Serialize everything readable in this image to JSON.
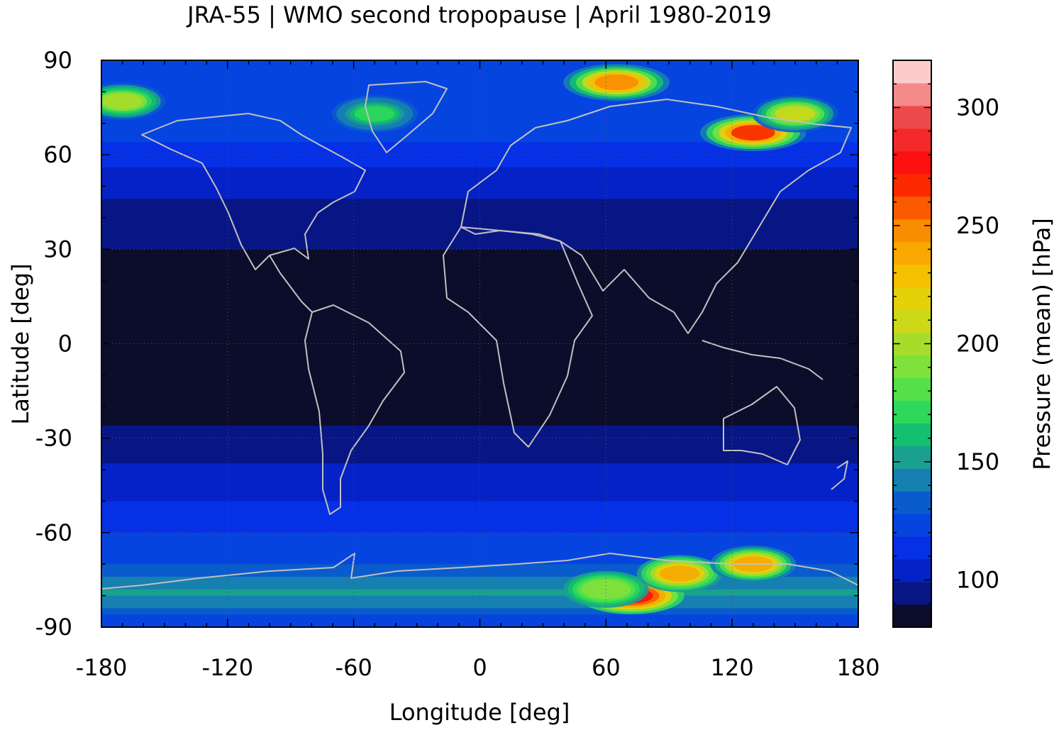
{
  "chart_data": {
    "type": "heatmap",
    "title": "JRA-55 | WMO second tropopause | April 1980-2019",
    "xlabel": "Longitude [deg]",
    "ylabel": "Latitude [deg]",
    "colorbar_label": "Pressure (mean) [hPa]",
    "xlim": [
      -180,
      180
    ],
    "ylim": [
      -90,
      90
    ],
    "xticks": [
      "-180",
      "-120",
      "-60",
      "0",
      "60",
      "120",
      "180"
    ],
    "yticks": [
      "90",
      "60",
      "30",
      "0",
      "-30",
      "-60",
      "-90"
    ],
    "colorbar_ticks": [
      "300",
      "250",
      "200",
      "150",
      "100"
    ],
    "colorbar_range": [
      80,
      320
    ],
    "colorbar_colors": [
      "#0b0d2a",
      "#081685",
      "#0422c6",
      "#0530e6",
      "#0644e0",
      "#0a5ccc",
      "#1680b0",
      "#1aa090",
      "#12c070",
      "#2ed85a",
      "#55e04a",
      "#80e03c",
      "#a8dc2a",
      "#ccd818",
      "#e6d00a",
      "#f4c000",
      "#f8a800",
      "#fa8c00",
      "#fc5a00",
      "#fc2800",
      "#fc1010",
      "#f42a2a",
      "#ec4a4a",
      "#f48a8a",
      "#fccccc"
    ],
    "zonal_mean_hPa": [
      {
        "lat": 90,
        "value": 118
      },
      {
        "lat": 80,
        "value": 122
      },
      {
        "lat": 70,
        "value": 125
      },
      {
        "lat": 60,
        "value": 112
      },
      {
        "lat": 50,
        "value": 103
      },
      {
        "lat": 40,
        "value": 95
      },
      {
        "lat": 30,
        "value": 90
      },
      {
        "lat": 20,
        "value": 86
      },
      {
        "lat": 10,
        "value": 82
      },
      {
        "lat": 0,
        "value": 81
      },
      {
        "lat": -10,
        "value": 82
      },
      {
        "lat": -20,
        "value": 85
      },
      {
        "lat": -30,
        "value": 92
      },
      {
        "lat": -40,
        "value": 102
      },
      {
        "lat": -50,
        "value": 108
      },
      {
        "lat": -60,
        "value": 118
      },
      {
        "lat": -70,
        "value": 128
      },
      {
        "lat": -80,
        "value": 150
      },
      {
        "lat": -90,
        "value": 118
      }
    ],
    "hotspots": [
      {
        "lon": 72,
        "lat": -80,
        "value": 280
      },
      {
        "lon": 95,
        "lat": -73,
        "value": 235
      },
      {
        "lon": 130,
        "lat": -70,
        "value": 240
      },
      {
        "lon": 60,
        "lat": -78,
        "value": 195
      },
      {
        "lon": 130,
        "lat": 67,
        "value": 265
      },
      {
        "lon": 150,
        "lat": 73,
        "value": 205
      },
      {
        "lon": 65,
        "lat": 83,
        "value": 250
      },
      {
        "lon": -50,
        "lat": 73,
        "value": 170
      },
      {
        "lon": -170,
        "lat": 77,
        "value": 200
      }
    ]
  }
}
